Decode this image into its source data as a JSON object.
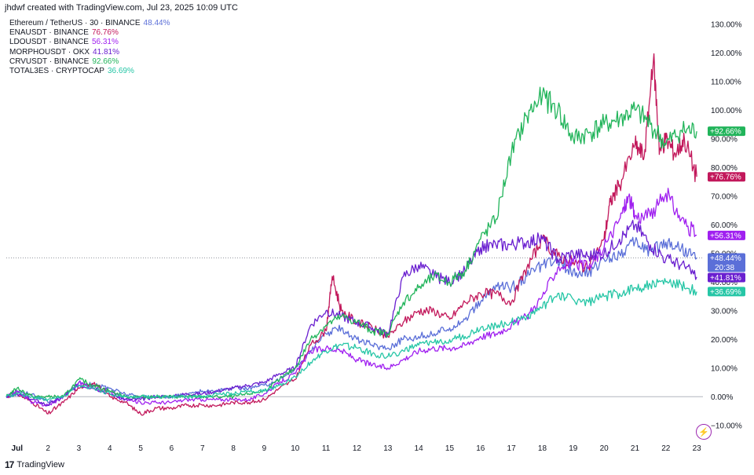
{
  "header": {
    "text": "jhdwf created with TradingView.com, Jul 23, 2025 10:09 UTC"
  },
  "footer": {
    "brand": "TradingView",
    "logo": "17"
  },
  "icons": {
    "flash": "⚡"
  },
  "chart_data": {
    "type": "line",
    "ylim": [
      -15,
      133
    ],
    "x_range": [
      0.65,
      23.2
    ],
    "y_ticks": [
      -10,
      0,
      10,
      20,
      30,
      40,
      50,
      60,
      70,
      80,
      90,
      100,
      110,
      120,
      130
    ],
    "y_tick_labels": [
      "−10.00%",
      "0.00%",
      "10.00%",
      "20.00%",
      "30.00%",
      "40.00%",
      "50.00%",
      "60.00%",
      "70.00%",
      "80.00%",
      "90.00%",
      "100.00%",
      "110.00%",
      "120.00%",
      "130.00%"
    ],
    "x_ticks": [
      1,
      2,
      3,
      4,
      5,
      6,
      7,
      8,
      9,
      10,
      11,
      12,
      13,
      14,
      15,
      16,
      17,
      18,
      19,
      20,
      21,
      22,
      23
    ],
    "x_tick_labels": [
      "Jul",
      "2",
      "3",
      "4",
      "5",
      "6",
      "7",
      "8",
      "9",
      "10",
      "11",
      "12",
      "13",
      "14",
      "15",
      "16",
      "17",
      "18",
      "19",
      "20",
      "21",
      "22",
      "23"
    ],
    "zero_line": 0,
    "price_line": 48.44,
    "series": [
      {
        "name": "Ethereum / TetherUS · 30 · BINANCE",
        "last": "48.44%",
        "badge": "+48.44%",
        "badge2": "20:38",
        "color": "#5b6fd8",
        "points": [
          [
            0.65,
            0
          ],
          [
            1,
            2
          ],
          [
            1.5,
            1
          ],
          [
            2,
            -2
          ],
          [
            2.5,
            0
          ],
          [
            3,
            5
          ],
          [
            3.5,
            4
          ],
          [
            4,
            3
          ],
          [
            4.5,
            1
          ],
          [
            5,
            0
          ],
          [
            5.5,
            0
          ],
          [
            6,
            0
          ],
          [
            6.5,
            1
          ],
          [
            7,
            2
          ],
          [
            7.5,
            2
          ],
          [
            8,
            3
          ],
          [
            8.5,
            3
          ],
          [
            9,
            4
          ],
          [
            9.5,
            6
          ],
          [
            10,
            10
          ],
          [
            10.5,
            16
          ],
          [
            11,
            22
          ],
          [
            11.5,
            24
          ],
          [
            12,
            20
          ],
          [
            12.5,
            18
          ],
          [
            13,
            17
          ],
          [
            13.5,
            20
          ],
          [
            14,
            21
          ],
          [
            14.5,
            22
          ],
          [
            15,
            24
          ],
          [
            15.5,
            27
          ],
          [
            16,
            33
          ],
          [
            16.5,
            39
          ],
          [
            17,
            38
          ],
          [
            17.5,
            42
          ],
          [
            18,
            46
          ],
          [
            18.5,
            47
          ],
          [
            19,
            44
          ],
          [
            19.5,
            43
          ],
          [
            20,
            48
          ],
          [
            20.5,
            50
          ],
          [
            21,
            54
          ],
          [
            21.5,
            51
          ],
          [
            22,
            54
          ],
          [
            22.5,
            52
          ],
          [
            23,
            48.44
          ]
        ]
      },
      {
        "name": "ENAUSDT · BINANCE",
        "last": "76.76%",
        "badge": "+76.76%",
        "color": "#c2185b",
        "points": [
          [
            0.65,
            0
          ],
          [
            1,
            1
          ],
          [
            1.5,
            -2
          ],
          [
            2,
            -6
          ],
          [
            2.5,
            -2
          ],
          [
            3,
            3
          ],
          [
            3.5,
            5
          ],
          [
            4,
            0
          ],
          [
            4.5,
            -2
          ],
          [
            5,
            -6
          ],
          [
            5.5,
            -4
          ],
          [
            6,
            -4
          ],
          [
            6.5,
            -3
          ],
          [
            7,
            -3
          ],
          [
            7.5,
            -3
          ],
          [
            8,
            -2
          ],
          [
            8.5,
            -2
          ],
          [
            9,
            -1
          ],
          [
            9.5,
            3
          ],
          [
            10,
            6
          ],
          [
            10.5,
            18
          ],
          [
            11,
            23
          ],
          [
            11.2,
            42
          ],
          [
            11.5,
            30
          ],
          [
            12,
            26
          ],
          [
            12.5,
            24
          ],
          [
            13,
            21
          ],
          [
            13.5,
            26
          ],
          [
            14,
            30
          ],
          [
            14.5,
            30
          ],
          [
            15,
            27
          ],
          [
            15.5,
            33
          ],
          [
            16,
            36
          ],
          [
            16.5,
            36
          ],
          [
            17,
            33
          ],
          [
            17.5,
            45
          ],
          [
            18,
            55
          ],
          [
            18.5,
            49
          ],
          [
            19,
            47
          ],
          [
            19.5,
            45
          ],
          [
            20,
            55
          ],
          [
            20.2,
            68
          ],
          [
            20.5,
            74
          ],
          [
            21,
            88
          ],
          [
            21.3,
            84
          ],
          [
            21.6,
            118
          ],
          [
            21.8,
            86
          ],
          [
            22,
            90
          ],
          [
            22.3,
            85
          ],
          [
            22.6,
            90
          ],
          [
            23,
            76.76
          ]
        ]
      },
      {
        "name": "LDOUSDT · BINANCE",
        "last": "56.31%",
        "badge": "+56.31%",
        "color": "#a020f0",
        "points": [
          [
            0.65,
            0
          ],
          [
            1,
            2
          ],
          [
            1.5,
            -2
          ],
          [
            2,
            -3
          ],
          [
            2.5,
            0
          ],
          [
            3,
            5
          ],
          [
            3.5,
            3
          ],
          [
            4,
            2
          ],
          [
            4.5,
            -1
          ],
          [
            5,
            -2
          ],
          [
            5.5,
            -2
          ],
          [
            6,
            -2
          ],
          [
            6.5,
            -1
          ],
          [
            7,
            -1
          ],
          [
            7.5,
            -1
          ],
          [
            8,
            -1
          ],
          [
            8.5,
            -1
          ],
          [
            9,
            1
          ],
          [
            9.5,
            5
          ],
          [
            10,
            8
          ],
          [
            10.5,
            16
          ],
          [
            11,
            17
          ],
          [
            11.5,
            16
          ],
          [
            12,
            13
          ],
          [
            12.5,
            11
          ],
          [
            13,
            10
          ],
          [
            13.5,
            13
          ],
          [
            14,
            16
          ],
          [
            14.5,
            17
          ],
          [
            15,
            17
          ],
          [
            15.5,
            18
          ],
          [
            16,
            21
          ],
          [
            16.5,
            22
          ],
          [
            17,
            25
          ],
          [
            17.5,
            28
          ],
          [
            18,
            35
          ],
          [
            18.5,
            45
          ],
          [
            19,
            47
          ],
          [
            19.5,
            45
          ],
          [
            20,
            52
          ],
          [
            20.5,
            62
          ],
          [
            20.8,
            70
          ],
          [
            21,
            63
          ],
          [
            21.5,
            63
          ],
          [
            22,
            71
          ],
          [
            22.5,
            62
          ],
          [
            23,
            56.31
          ]
        ]
      },
      {
        "name": "MORPHOUSDT · OKX",
        "last": "41.81%",
        "badge": "+41.81%",
        "color": "#6a1fd0",
        "points": [
          [
            0.65,
            0
          ],
          [
            1,
            1
          ],
          [
            1.5,
            -1
          ],
          [
            2,
            -3
          ],
          [
            2.5,
            0
          ],
          [
            3,
            4
          ],
          [
            3.5,
            3
          ],
          [
            4,
            1
          ],
          [
            4.5,
            -1
          ],
          [
            5,
            -1
          ],
          [
            5.5,
            0
          ],
          [
            6,
            0
          ],
          [
            6.5,
            1
          ],
          [
            7,
            1
          ],
          [
            7.5,
            2
          ],
          [
            8,
            3
          ],
          [
            8.5,
            4
          ],
          [
            9,
            5
          ],
          [
            9.5,
            8
          ],
          [
            10,
            10
          ],
          [
            10.5,
            25
          ],
          [
            11,
            30
          ],
          [
            11.5,
            28
          ],
          [
            12,
            26
          ],
          [
            12.5,
            24
          ],
          [
            13,
            22
          ],
          [
            13.5,
            42
          ],
          [
            14,
            46
          ],
          [
            14.5,
            42
          ],
          [
            15,
            40
          ],
          [
            15.5,
            44
          ],
          [
            16,
            52
          ],
          [
            16.5,
            53
          ],
          [
            17,
            53
          ],
          [
            17.5,
            54
          ],
          [
            18,
            55
          ],
          [
            18.5,
            48
          ],
          [
            19,
            50
          ],
          [
            19.5,
            49
          ],
          [
            20,
            50
          ],
          [
            20.5,
            55
          ],
          [
            21,
            60
          ],
          [
            21.5,
            53
          ],
          [
            22,
            48
          ],
          [
            22.5,
            46
          ],
          [
            23,
            41.81
          ]
        ]
      },
      {
        "name": "CRVUSDT · BINANCE",
        "last": "92.66%",
        "badge": "+92.66%",
        "color": "#21b45a",
        "points": [
          [
            0.65,
            0
          ],
          [
            1,
            3
          ],
          [
            1.5,
            0
          ],
          [
            2,
            0
          ],
          [
            2.5,
            0
          ],
          [
            3,
            6
          ],
          [
            3.5,
            4
          ],
          [
            4,
            2
          ],
          [
            4.5,
            0
          ],
          [
            5,
            0
          ],
          [
            5.5,
            0
          ],
          [
            6,
            0
          ],
          [
            6.5,
            0
          ],
          [
            7,
            0
          ],
          [
            7.5,
            0
          ],
          [
            8,
            0
          ],
          [
            8.5,
            1
          ],
          [
            9,
            2
          ],
          [
            9.5,
            6
          ],
          [
            10,
            10
          ],
          [
            10.5,
            20
          ],
          [
            11,
            25
          ],
          [
            11.5,
            28
          ],
          [
            12,
            26
          ],
          [
            12.5,
            23
          ],
          [
            13,
            22
          ],
          [
            13.5,
            33
          ],
          [
            14,
            38
          ],
          [
            14.5,
            42
          ],
          [
            15,
            40
          ],
          [
            15.5,
            44
          ],
          [
            16,
            55
          ],
          [
            16.5,
            62
          ],
          [
            17,
            85
          ],
          [
            17.5,
            98
          ],
          [
            18,
            105
          ],
          [
            18.5,
            100
          ],
          [
            19,
            90
          ],
          [
            19.5,
            92
          ],
          [
            20,
            95
          ],
          [
            20.5,
            97
          ],
          [
            21,
            100
          ],
          [
            21.5,
            95
          ],
          [
            22,
            88
          ],
          [
            22.5,
            93
          ],
          [
            23,
            92.66
          ]
        ]
      },
      {
        "name": "TOTAL3ES · CRYPTOCAP",
        "last": "36.69%",
        "badge": "+36.69%",
        "color": "#26c6a6",
        "points": [
          [
            0.65,
            0
          ],
          [
            1,
            1
          ],
          [
            1.5,
            0
          ],
          [
            2,
            -1
          ],
          [
            2.5,
            0
          ],
          [
            3,
            4
          ],
          [
            3.5,
            3
          ],
          [
            4,
            1
          ],
          [
            4.5,
            0
          ],
          [
            5,
            0
          ],
          [
            5.5,
            0
          ],
          [
            6,
            0
          ],
          [
            6.5,
            0
          ],
          [
            7,
            0
          ],
          [
            7.5,
            1
          ],
          [
            8,
            1
          ],
          [
            8.5,
            2
          ],
          [
            9,
            2
          ],
          [
            9.5,
            4
          ],
          [
            10,
            7
          ],
          [
            10.5,
            12
          ],
          [
            11,
            16
          ],
          [
            11.5,
            18
          ],
          [
            12,
            17
          ],
          [
            12.5,
            15
          ],
          [
            13,
            14
          ],
          [
            13.5,
            16
          ],
          [
            14,
            18
          ],
          [
            14.5,
            19
          ],
          [
            15,
            20
          ],
          [
            15.5,
            21
          ],
          [
            16,
            24
          ],
          [
            16.5,
            25
          ],
          [
            17,
            26
          ],
          [
            17.5,
            28
          ],
          [
            18,
            31
          ],
          [
            18.5,
            36
          ],
          [
            19,
            34
          ],
          [
            19.5,
            33
          ],
          [
            20,
            35
          ],
          [
            20.5,
            36
          ],
          [
            21,
            38
          ],
          [
            21.5,
            39
          ],
          [
            22,
            40
          ],
          [
            22.5,
            39
          ],
          [
            23,
            36.69
          ]
        ]
      }
    ]
  }
}
